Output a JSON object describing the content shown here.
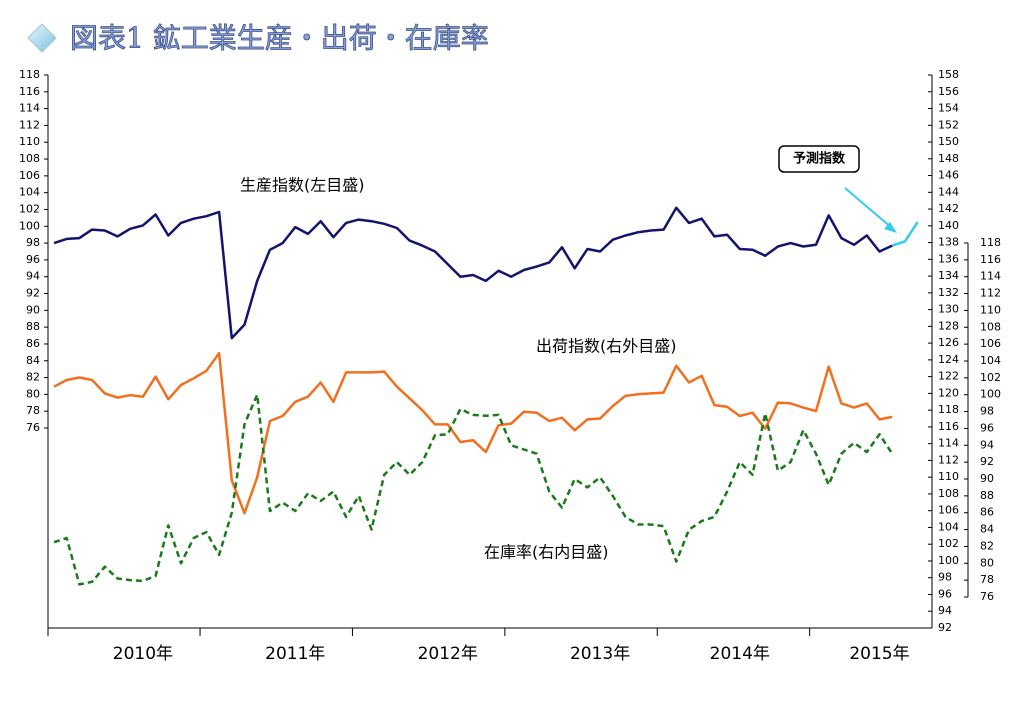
{
  "chart_data": {
    "type": "line",
    "title": "図表1 鉱工業生産・出荷・在庫率",
    "annotations": [
      "生産指数(左目盛)",
      "出荷指数(右外目盛)",
      "在庫率(右内目盛)",
      "予測指数"
    ],
    "categories": [
      null,
      null,
      null,
      null,
      null,
      null,
      null,
      "2010年",
      null,
      null,
      null,
      null,
      null,
      null,
      null,
      null,
      null,
      null,
      null,
      "2011年",
      null,
      null,
      null,
      null,
      null,
      null,
      null,
      null,
      null,
      null,
      null,
      "2012年",
      null,
      null,
      null,
      null,
      null,
      null,
      null,
      null,
      null,
      null,
      null,
      "2013年",
      null,
      null,
      null,
      null,
      null,
      null,
      null,
      null,
      null,
      null,
      "2014年",
      null,
      null,
      null,
      null,
      null,
      null,
      null,
      null,
      null,
      null,
      "2015年",
      null,
      null,
      null
    ],
    "ylim": [
      76,
      118
    ],
    "yticks": [
      76,
      78,
      80,
      82,
      84,
      86,
      88,
      90,
      92,
      94,
      96,
      98,
      100,
      102,
      104,
      106,
      108,
      110,
      112,
      114,
      116,
      118
    ],
    "y2lim": [
      92,
      158
    ],
    "y2ticks": [
      92,
      94,
      96,
      98,
      100,
      102,
      104,
      106,
      108,
      110,
      112,
      114,
      116,
      118,
      120,
      122,
      124,
      126,
      128,
      130,
      132,
      134,
      136,
      138,
      140,
      142,
      144,
      146,
      148,
      150,
      152,
      154,
      156,
      158
    ],
    "y3lim": [
      76,
      118
    ],
    "y3ticks": [
      76,
      78,
      80,
      82,
      84,
      86,
      88,
      90,
      92,
      94,
      96,
      98,
      100,
      102,
      104,
      106,
      108,
      110,
      112,
      114,
      116,
      118
    ],
    "series": [
      {
        "name": "生産指数",
        "color": "#14146e",
        "axis": "y",
        "dashed": false,
        "values": [
          98.0,
          98.5,
          98.6,
          99.6,
          99.5,
          98.8,
          99.7,
          100.1,
          101.4,
          98.9,
          100.4,
          100.9,
          101.2,
          101.7,
          86.7,
          88.3,
          93.5,
          97.2,
          98.0,
          99.9,
          99.1,
          100.6,
          98.7,
          100.4,
          100.8,
          100.6,
          100.3,
          99.8,
          98.3,
          97.7,
          97.0,
          95.5,
          94.0,
          94.2,
          93.5,
          94.7,
          94.0,
          94.8,
          95.2,
          95.7,
          97.5,
          95.0,
          97.3,
          97.0,
          98.4,
          98.9,
          99.3,
          99.5,
          99.6,
          102.2,
          100.4,
          100.9,
          98.8,
          99.0,
          97.3,
          97.2,
          96.5,
          97.6,
          98.0,
          97.6,
          97.8,
          101.3,
          98.6,
          97.8,
          98.9,
          97.0,
          97.7,
          null,
          null
        ]
      },
      {
        "name": "予測指数",
        "color": "#33ccf0",
        "axis": "y",
        "dashed": false,
        "values": [
          null,
          null,
          null,
          null,
          null,
          null,
          null,
          null,
          null,
          null,
          null,
          null,
          null,
          null,
          null,
          null,
          null,
          null,
          null,
          null,
          null,
          null,
          null,
          null,
          null,
          null,
          null,
          null,
          null,
          null,
          null,
          null,
          null,
          null,
          null,
          null,
          null,
          null,
          null,
          null,
          null,
          null,
          null,
          null,
          null,
          null,
          null,
          null,
          null,
          null,
          null,
          null,
          null,
          null,
          null,
          null,
          null,
          null,
          null,
          null,
          null,
          null,
          null,
          null,
          null,
          null,
          97.7,
          98.2,
          100.5
        ]
      },
      {
        "name": "出荷指数",
        "color": "#f07020",
        "axis": "y2",
        "dashed": false,
        "values": [
          120.8,
          121.6,
          121.9,
          121.6,
          120.0,
          119.5,
          119.8,
          119.6,
          122.0,
          119.3,
          121.0,
          121.8,
          122.7,
          124.8,
          109.6,
          105.7,
          110.0,
          116.7,
          117.3,
          119.0,
          119.6,
          121.3,
          119.0,
          122.5,
          122.5,
          122.5,
          122.6,
          120.8,
          119.4,
          118.0,
          116.3,
          116.3,
          114.2,
          114.4,
          113.0,
          116.2,
          116.4,
          117.8,
          117.7,
          116.7,
          117.1,
          115.6,
          116.9,
          117.0,
          118.5,
          119.7,
          119.9,
          120.0,
          120.1,
          123.3,
          121.3,
          122.1,
          118.6,
          118.4,
          117.3,
          117.7,
          115.8,
          118.9,
          118.8,
          118.3,
          117.9,
          123.2,
          118.8,
          118.3,
          118.8,
          116.9,
          117.2,
          null,
          null
        ]
      },
      {
        "name": "在庫率",
        "color": "#1a7a1a",
        "axis": "y3",
        "dashed": true,
        "values": [
          82.5,
          83.0,
          77.5,
          77.8,
          79.6,
          78.2,
          78.0,
          77.9,
          78.5,
          84.5,
          80.0,
          83.0,
          83.7,
          81.0,
          86.0,
          96.5,
          100.0,
          86.2,
          87.2,
          86.2,
          88.3,
          87.4,
          88.5,
          85.5,
          88.0,
          84.0,
          90.5,
          92.0,
          90.5,
          92.0,
          95.2,
          95.3,
          98.3,
          97.6,
          97.5,
          97.6,
          94.0,
          93.5,
          93.0,
          88.5,
          86.6,
          90.0,
          89.0,
          90.2,
          88.0,
          85.5,
          84.6,
          84.6,
          84.4,
          80.2,
          84.0,
          85.0,
          85.5,
          88.5,
          92.0,
          90.5,
          97.8,
          91.0,
          92.0,
          95.8,
          93.0,
          89.3,
          93.0,
          94.3,
          93.2,
          95.3,
          93.0,
          null,
          null
        ]
      }
    ]
  }
}
